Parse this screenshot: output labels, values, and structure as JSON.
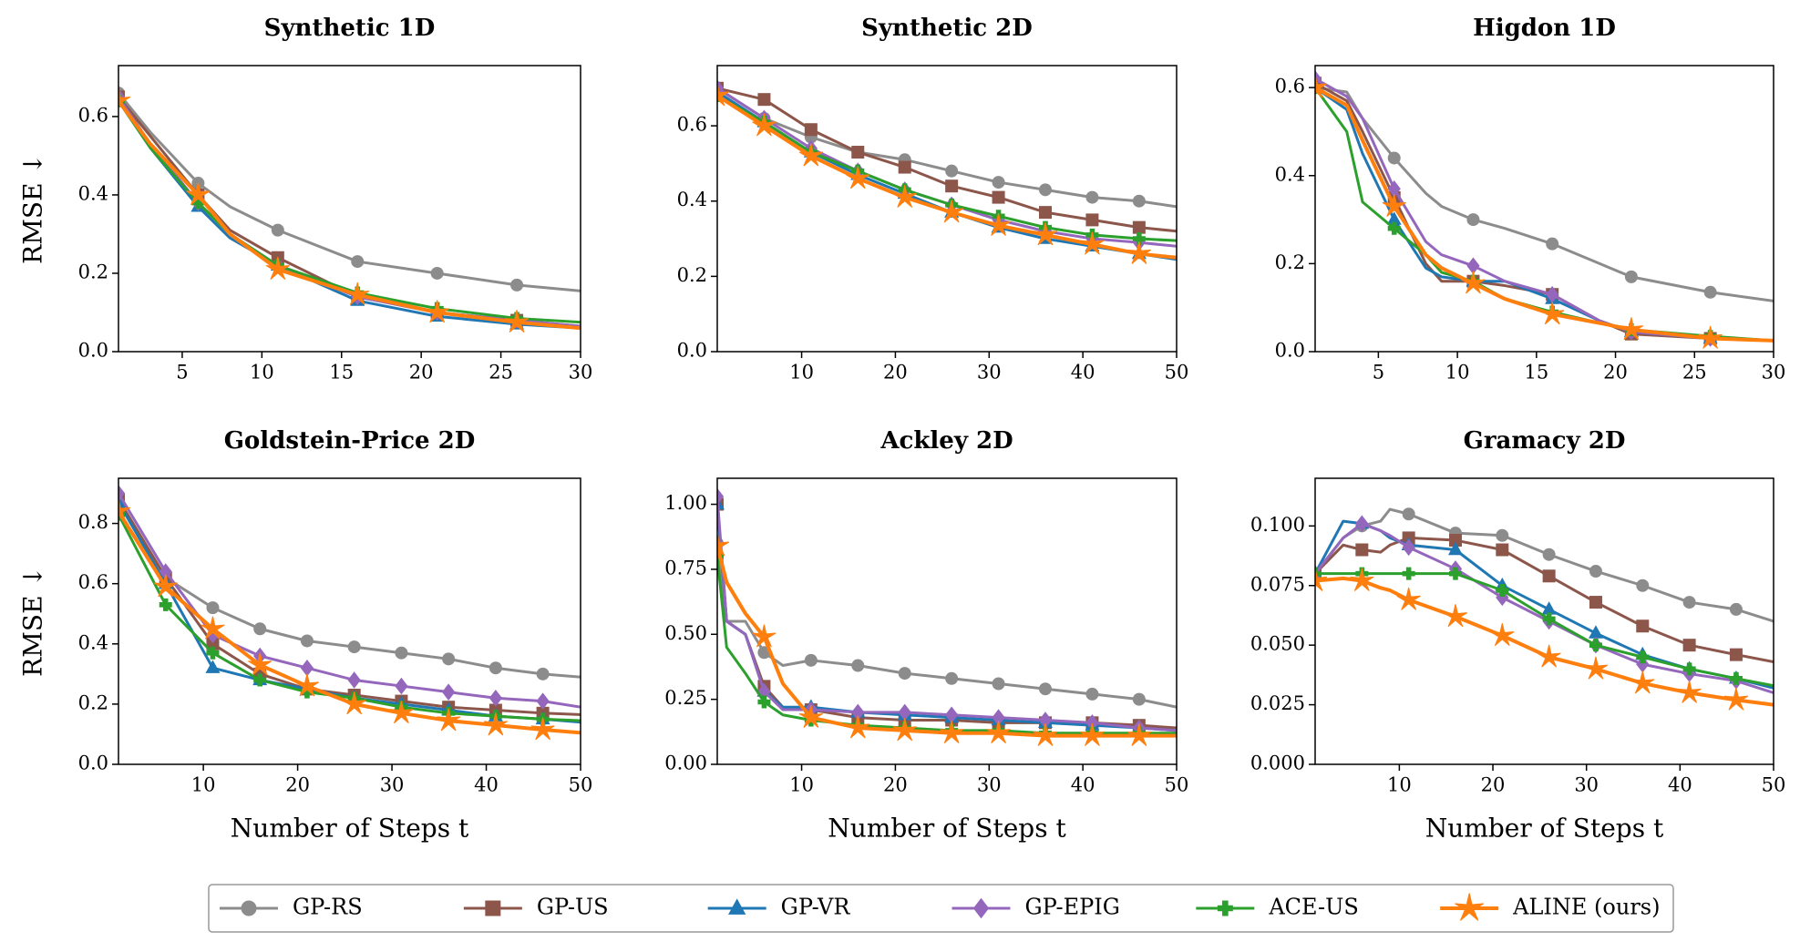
{
  "chart_data": [
    {
      "type": "line",
      "title": "Synthetic 1D",
      "ylabel": "RMSE ↓",
      "legend": "lower center",
      "x": [
        1,
        3,
        6,
        8,
        11,
        16,
        21,
        26,
        30
      ],
      "xlim": [
        1,
        30
      ],
      "xticks": [
        5,
        10,
        15,
        20,
        25,
        30
      ],
      "ylim": [
        0,
        0.73
      ],
      "yticks": [
        {
          "value": 0,
          "label": "0.0"
        },
        0.2,
        0.4,
        0.6
      ],
      "series": [
        {
          "name": "GP-RS",
          "color": "#8c8c8c",
          "marker": "circle",
          "values": [
            0.66,
            0.56,
            0.43,
            0.37,
            0.31,
            0.23,
            0.2,
            0.17,
            0.155
          ]
        },
        {
          "name": "GP-US",
          "color": "#8c564b",
          "marker": "square",
          "values": [
            0.65,
            0.55,
            0.4,
            0.31,
            0.24,
            0.14,
            0.1,
            0.08,
            0.065
          ]
        },
        {
          "name": "GP-VR",
          "color": "#1f77b4",
          "marker": "triangle",
          "values": [
            0.64,
            0.52,
            0.37,
            0.29,
            0.22,
            0.13,
            0.09,
            0.07,
            0.06
          ]
        },
        {
          "name": "GP-EPIG",
          "color": "#9467bd",
          "marker": "diamond",
          "values": [
            0.65,
            0.53,
            0.38,
            0.3,
            0.22,
            0.14,
            0.1,
            0.08,
            0.065
          ]
        },
        {
          "name": "ACE-US",
          "color": "#2ca02c",
          "marker": "plus",
          "values": [
            0.64,
            0.52,
            0.38,
            0.3,
            0.22,
            0.15,
            0.11,
            0.085,
            0.075
          ]
        },
        {
          "name": "ALINE (ours)",
          "color": "#ff7f0e",
          "marker": "star",
          "values": [
            0.64,
            0.53,
            0.4,
            0.3,
            0.21,
            0.145,
            0.1,
            0.075,
            0.06
          ]
        }
      ]
    },
    {
      "type": "line",
      "title": "Synthetic 2D",
      "x": [
        1,
        6,
        11,
        16,
        21,
        26,
        31,
        36,
        41,
        46,
        50
      ],
      "xlim": [
        1,
        50
      ],
      "xticks": [
        10,
        20,
        30,
        40,
        50
      ],
      "ylim": [
        0,
        0.76
      ],
      "yticks": [
        {
          "value": 0,
          "label": "0.0"
        },
        0.2,
        0.4,
        0.6
      ],
      "series": [
        {
          "name": "GP-RS",
          "color": "#8c8c8c",
          "marker": "circle",
          "values": [
            0.7,
            0.62,
            0.57,
            0.53,
            0.51,
            0.48,
            0.45,
            0.43,
            0.41,
            0.4,
            0.385
          ]
        },
        {
          "name": "GP-US",
          "color": "#8c564b",
          "marker": "square",
          "values": [
            0.7,
            0.67,
            0.59,
            0.53,
            0.49,
            0.44,
            0.41,
            0.37,
            0.35,
            0.33,
            0.32
          ]
        },
        {
          "name": "GP-VR",
          "color": "#1f77b4",
          "marker": "triangle",
          "values": [
            0.69,
            0.61,
            0.53,
            0.47,
            0.42,
            0.37,
            0.33,
            0.3,
            0.28,
            0.26,
            0.245
          ]
        },
        {
          "name": "GP-EPIG",
          "color": "#9467bd",
          "marker": "diamond",
          "values": [
            0.7,
            0.62,
            0.54,
            0.48,
            0.43,
            0.39,
            0.35,
            0.32,
            0.3,
            0.29,
            0.28
          ]
        },
        {
          "name": "ACE-US",
          "color": "#2ca02c",
          "marker": "plus",
          "values": [
            0.68,
            0.61,
            0.53,
            0.48,
            0.43,
            0.39,
            0.36,
            0.33,
            0.31,
            0.3,
            0.295
          ]
        },
        {
          "name": "ALINE (ours)",
          "color": "#ff7f0e",
          "marker": "star",
          "values": [
            0.68,
            0.6,
            0.52,
            0.46,
            0.41,
            0.37,
            0.335,
            0.31,
            0.285,
            0.26,
            0.25
          ]
        }
      ]
    },
    {
      "type": "line",
      "title": "Higdon 1D",
      "x": [
        1,
        3,
        4,
        6,
        8,
        9,
        11,
        13,
        16,
        19,
        21,
        26,
        30
      ],
      "xlim": [
        1,
        30
      ],
      "xticks": [
        5,
        10,
        15,
        20,
        25,
        30
      ],
      "ylim": [
        0,
        0.65
      ],
      "yticks": [
        {
          "value": 0,
          "label": "0.0"
        },
        0.2,
        0.4,
        0.6
      ],
      "series": [
        {
          "name": "GP-RS",
          "color": "#8c8c8c",
          "marker": "circle",
          "values": [
            0.6,
            0.59,
            0.53,
            0.44,
            0.36,
            0.33,
            0.3,
            0.28,
            0.245,
            0.2,
            0.17,
            0.135,
            0.115
          ]
        },
        {
          "name": "GP-US",
          "color": "#8c564b",
          "marker": "square",
          "values": [
            0.61,
            0.57,
            0.5,
            0.35,
            0.2,
            0.16,
            0.16,
            0.15,
            0.13,
            0.07,
            0.04,
            0.03,
            0.025
          ]
        },
        {
          "name": "GP-VR",
          "color": "#1f77b4",
          "marker": "triangle",
          "values": [
            0.6,
            0.55,
            0.45,
            0.3,
            0.19,
            0.17,
            0.16,
            0.16,
            0.12,
            0.07,
            0.045,
            0.03,
            0.025
          ]
        },
        {
          "name": "GP-EPIG",
          "color": "#9467bd",
          "marker": "diamond",
          "values": [
            0.62,
            0.58,
            0.53,
            0.37,
            0.25,
            0.22,
            0.195,
            0.16,
            0.13,
            0.07,
            0.045,
            0.03,
            0.025
          ]
        },
        {
          "name": "ACE-US",
          "color": "#2ca02c",
          "marker": "plus",
          "values": [
            0.6,
            0.5,
            0.34,
            0.28,
            0.22,
            0.18,
            0.16,
            0.12,
            0.09,
            0.065,
            0.05,
            0.035,
            0.025
          ]
        },
        {
          "name": "ALINE (ours)",
          "color": "#ff7f0e",
          "marker": "star",
          "values": [
            0.6,
            0.56,
            0.48,
            0.33,
            0.22,
            0.19,
            0.155,
            0.12,
            0.085,
            0.065,
            0.05,
            0.03,
            0.025
          ]
        }
      ]
    },
    {
      "type": "line",
      "title": "Goldstein-Price 2D",
      "ylabel": "RMSE ↓",
      "xlabel": "Number of Steps t",
      "x": [
        1,
        6,
        11,
        16,
        21,
        26,
        31,
        36,
        41,
        46,
        50
      ],
      "xlim": [
        1,
        50
      ],
      "xticks": [
        10,
        20,
        30,
        40,
        50
      ],
      "ylim": [
        0,
        0.95
      ],
      "yticks": [
        {
          "value": 0,
          "label": "0.0"
        },
        0.2,
        0.4,
        0.6,
        0.8
      ],
      "series": [
        {
          "name": "GP-RS",
          "color": "#8c8c8c",
          "marker": "circle",
          "values": [
            0.88,
            0.62,
            0.52,
            0.45,
            0.41,
            0.39,
            0.37,
            0.35,
            0.32,
            0.3,
            0.29
          ]
        },
        {
          "name": "GP-US",
          "color": "#8c564b",
          "marker": "square",
          "values": [
            0.88,
            0.62,
            0.4,
            0.3,
            0.25,
            0.23,
            0.21,
            0.19,
            0.18,
            0.17,
            0.165
          ]
        },
        {
          "name": "GP-VR",
          "color": "#1f77b4",
          "marker": "triangle",
          "values": [
            0.87,
            0.6,
            0.32,
            0.28,
            0.25,
            0.22,
            0.2,
            0.18,
            0.16,
            0.15,
            0.14
          ]
        },
        {
          "name": "GP-EPIG",
          "color": "#9467bd",
          "marker": "diamond",
          "values": [
            0.9,
            0.64,
            0.43,
            0.36,
            0.32,
            0.28,
            0.26,
            0.24,
            0.22,
            0.21,
            0.19
          ]
        },
        {
          "name": "ACE-US",
          "color": "#2ca02c",
          "marker": "plus",
          "values": [
            0.83,
            0.53,
            0.37,
            0.28,
            0.24,
            0.22,
            0.19,
            0.17,
            0.16,
            0.15,
            0.145
          ]
        },
        {
          "name": "ALINE (ours)",
          "color": "#ff7f0e",
          "marker": "star",
          "values": [
            0.84,
            0.59,
            0.45,
            0.33,
            0.26,
            0.2,
            0.17,
            0.145,
            0.13,
            0.115,
            0.105
          ]
        }
      ]
    },
    {
      "type": "line",
      "title": "Ackley 2D",
      "xlabel": "Number of Steps t",
      "x": [
        1,
        2,
        4,
        6,
        8,
        11,
        16,
        21,
        26,
        31,
        36,
        41,
        46,
        50
      ],
      "xlim": [
        1,
        50
      ],
      "xticks": [
        10,
        20,
        30,
        40,
        50
      ],
      "ylim": [
        0,
        1.1
      ],
      "yticks": [
        {
          "value": 0,
          "label": "0.00"
        },
        0.25,
        {
          "value": 0.5,
          "label": "0.50"
        },
        0.75,
        {
          "value": 1,
          "label": "1.00"
        }
      ],
      "series": [
        {
          "name": "GP-RS",
          "color": "#8c8c8c",
          "marker": "circle",
          "values": [
            0.85,
            0.55,
            0.55,
            0.43,
            0.38,
            0.4,
            0.38,
            0.35,
            0.33,
            0.31,
            0.29,
            0.27,
            0.25,
            0.22
          ]
        },
        {
          "name": "GP-US",
          "color": "#8c564b",
          "marker": "square",
          "values": [
            1.0,
            0.55,
            0.5,
            0.3,
            0.22,
            0.21,
            0.18,
            0.17,
            0.17,
            0.16,
            0.16,
            0.16,
            0.15,
            0.14
          ]
        },
        {
          "name": "GP-VR",
          "color": "#1f77b4",
          "marker": "triangle",
          "values": [
            1.0,
            0.55,
            0.5,
            0.28,
            0.22,
            0.22,
            0.2,
            0.19,
            0.18,
            0.17,
            0.16,
            0.15,
            0.14,
            0.13
          ]
        },
        {
          "name": "GP-EPIG",
          "color": "#9467bd",
          "marker": "diamond",
          "values": [
            1.03,
            0.55,
            0.5,
            0.28,
            0.21,
            0.21,
            0.2,
            0.2,
            0.19,
            0.18,
            0.17,
            0.16,
            0.14,
            0.13
          ]
        },
        {
          "name": "ACE-US",
          "color": "#2ca02c",
          "marker": "plus",
          "values": [
            0.8,
            0.45,
            0.35,
            0.24,
            0.19,
            0.17,
            0.15,
            0.14,
            0.13,
            0.13,
            0.12,
            0.12,
            0.12,
            0.12
          ]
        },
        {
          "name": "ALINE (ours)",
          "color": "#ff7f0e",
          "marker": "star",
          "values": [
            0.84,
            0.7,
            0.58,
            0.49,
            0.31,
            0.18,
            0.14,
            0.13,
            0.12,
            0.12,
            0.11,
            0.11,
            0.11,
            0.11
          ]
        }
      ]
    },
    {
      "type": "line",
      "title": "Gramacy 2D",
      "xlabel": "Number of Steps t",
      "x": [
        1,
        4,
        6,
        8,
        9,
        11,
        16,
        21,
        26,
        31,
        36,
        41,
        46,
        50
      ],
      "xlim": [
        1,
        50
      ],
      "xticks": [
        10,
        20,
        30,
        40,
        50
      ],
      "ylim": [
        0,
        0.12
      ],
      "yticks": [
        {
          "value": 0,
          "label": "0.000"
        },
        0.025,
        {
          "value": 0.05,
          "label": "0.050"
        },
        0.075,
        {
          "value": 0.1,
          "label": "0.100"
        }
      ],
      "series": [
        {
          "name": "GP-RS",
          "color": "#8c8c8c",
          "marker": "circle",
          "values": [
            0.08,
            0.095,
            0.1,
            0.102,
            0.107,
            0.105,
            0.097,
            0.096,
            0.088,
            0.081,
            0.075,
            0.068,
            0.065,
            0.06
          ]
        },
        {
          "name": "GP-US",
          "color": "#8c564b",
          "marker": "square",
          "values": [
            0.08,
            0.092,
            0.09,
            0.089,
            0.092,
            0.095,
            0.094,
            0.09,
            0.079,
            0.068,
            0.058,
            0.05,
            0.046,
            0.043
          ]
        },
        {
          "name": "GP-VR",
          "color": "#1f77b4",
          "marker": "triangle",
          "values": [
            0.08,
            0.102,
            0.101,
            0.098,
            0.095,
            0.092,
            0.09,
            0.075,
            0.065,
            0.055,
            0.046,
            0.04,
            0.036,
            0.032
          ]
        },
        {
          "name": "GP-EPIG",
          "color": "#9467bd",
          "marker": "diamond",
          "values": [
            0.08,
            0.095,
            0.101,
            0.098,
            0.096,
            0.091,
            0.082,
            0.07,
            0.06,
            0.05,
            0.042,
            0.038,
            0.035,
            0.03
          ]
        },
        {
          "name": "ACE-US",
          "color": "#2ca02c",
          "marker": "plus",
          "values": [
            0.08,
            0.08,
            0.08,
            0.08,
            0.08,
            0.08,
            0.08,
            0.073,
            0.061,
            0.05,
            0.045,
            0.04,
            0.036,
            0.033
          ]
        },
        {
          "name": "ALINE (ours)",
          "color": "#ff7f0e",
          "marker": "star",
          "values": [
            0.077,
            0.078,
            0.077,
            0.074,
            0.073,
            0.069,
            0.062,
            0.054,
            0.045,
            0.04,
            0.034,
            0.03,
            0.027,
            0.025
          ]
        }
      ]
    }
  ]
}
